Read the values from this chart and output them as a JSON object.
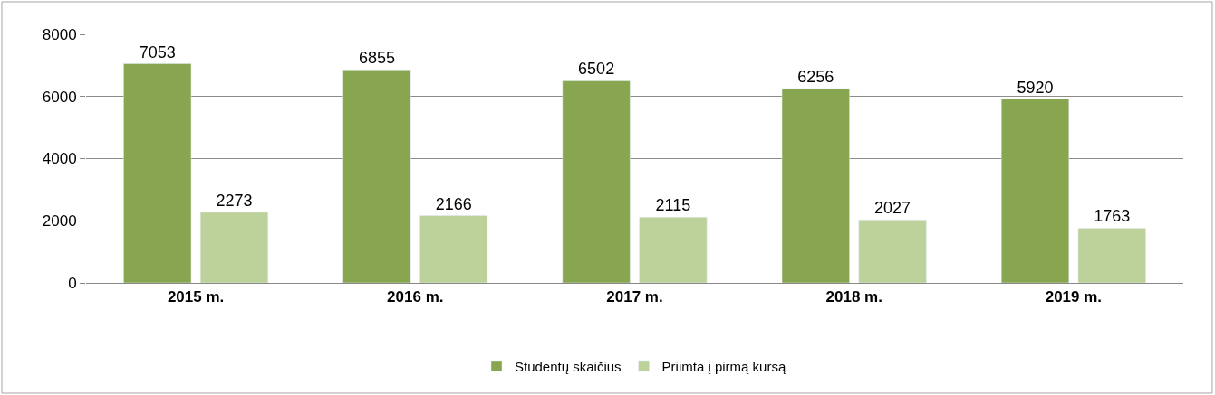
{
  "chart_data": {
    "type": "bar",
    "categories": [
      "2015 m.",
      "2016 m.",
      "2017 m.",
      "2018 m.",
      "2019 m."
    ],
    "series": [
      {
        "name": "Studentų skaičius",
        "color": "#88a64f",
        "values": [
          7053,
          6855,
          6502,
          6256,
          5920
        ]
      },
      {
        "name": "Priimta į pirmą kursą",
        "color": "#bdd29b",
        "values": [
          2273,
          2166,
          2115,
          2027,
          1763
        ]
      }
    ],
    "ylim": [
      0,
      8000
    ],
    "yticks": [
      0,
      2000,
      4000,
      6000,
      8000
    ],
    "grid": "y",
    "legend": "bottom",
    "data_labels": true
  }
}
